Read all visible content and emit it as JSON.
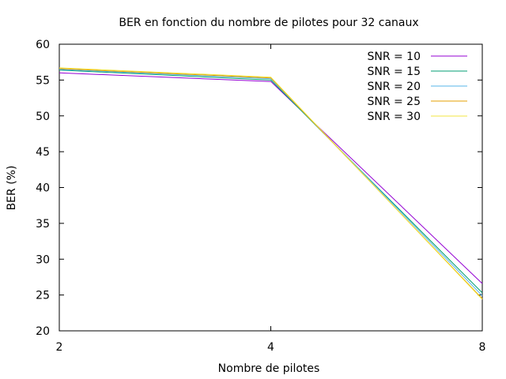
{
  "chart_data": {
    "type": "line",
    "title": "BER en fonction du nombre de pilotes pour 32 canaux",
    "xlabel": "Nombre de pilotes",
    "ylabel": "BER (%)",
    "x": [
      2,
      4,
      8
    ],
    "x_scale": "log2",
    "xlim": [
      2,
      8
    ],
    "ylim": [
      20,
      60
    ],
    "x_ticks": [
      "2",
      "4",
      "8"
    ],
    "y_ticks": [
      "20",
      "25",
      "30",
      "35",
      "40",
      "45",
      "50",
      "55",
      "60"
    ],
    "grid": false,
    "legend_position": "top-right",
    "series": [
      {
        "name": "SNR = 10",
        "color": "#9400d3",
        "values": [
          56.0,
          54.8,
          26.6
        ]
      },
      {
        "name": "SNR = 15",
        "color": "#009e73",
        "values": [
          56.4,
          55.0,
          25.3
        ]
      },
      {
        "name": "SNR = 20",
        "color": "#56b4e9",
        "values": [
          56.5,
          55.2,
          24.9
        ]
      },
      {
        "name": "SNR = 25",
        "color": "#e69f00",
        "values": [
          56.6,
          55.3,
          24.5
        ]
      },
      {
        "name": "SNR = 30",
        "color": "#f0e442",
        "values": [
          56.7,
          55.4,
          24.4
        ]
      }
    ]
  }
}
